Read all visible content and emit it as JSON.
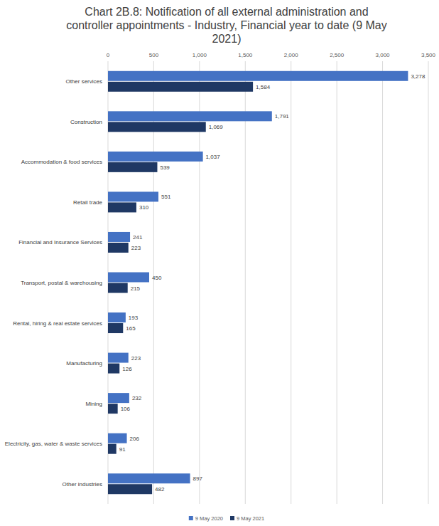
{
  "chart_data": {
    "type": "bar",
    "orientation": "horizontal",
    "title": "Chart 2B.8: Notification of all external administration and controller appointments - Industry, Financial year to date (9 May 2021)",
    "categories": [
      "Other services",
      "Construction",
      "Accommodation & food services",
      "Retail trade",
      "Financial and Insurance Services",
      "Transport, postal & warehousing",
      "Rental, hiring & real estate services",
      "Manufacturing",
      "Mining",
      "Electricity, gas, water & waste services",
      "Other industries"
    ],
    "series": [
      {
        "name": "9 May 2020",
        "color": "#4472c4",
        "values": [
          3278,
          1791,
          1037,
          551,
          241,
          450,
          193,
          223,
          232,
          206,
          897
        ],
        "value_labels": [
          "3,278",
          "1,791",
          "1,037",
          "551",
          "241",
          "450",
          "193",
          "223",
          "232",
          "206",
          "897"
        ]
      },
      {
        "name": "9 May 2021",
        "color": "#1f3864",
        "values": [
          1584,
          1069,
          539,
          310,
          223,
          215,
          165,
          126,
          106,
          91,
          482
        ],
        "value_labels": [
          "1,584",
          "1,069",
          "539",
          "310",
          "223",
          "215",
          "165",
          "126",
          "106",
          "91",
          "482"
        ]
      }
    ],
    "xlim": [
      0,
      3500
    ],
    "xticks": [
      0,
      500,
      {
        "value": 1000,
        "label": "1,000"
      },
      {
        "value": 1500,
        "label": "1,500"
      },
      {
        "value": 2000,
        "label": "2,000"
      },
      {
        "value": 2500,
        "label": "2,500"
      },
      {
        "value": 3000,
        "label": "3,000"
      },
      {
        "value": 3500,
        "label": "3,500"
      }
    ],
    "grid": true,
    "legend": "bottom",
    "data_labels": true
  }
}
